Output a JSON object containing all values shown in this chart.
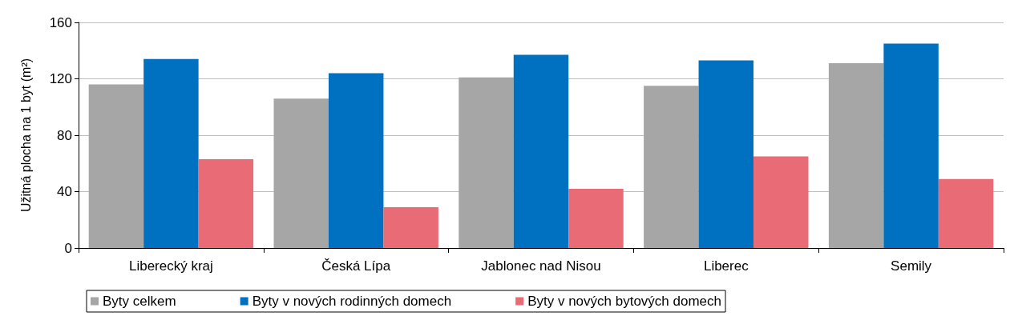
{
  "chart_data": {
    "type": "bar",
    "ylabel": "Užitná plocha na 1 byt (m²)",
    "categories": [
      "Liberecký kraj",
      "Česká Lípa",
      "Jablonec nad Nisou",
      "Liberec",
      "Semily"
    ],
    "series": [
      {
        "name": "Byty celkem",
        "color": "#a6a6a6",
        "values": [
          116,
          106,
          121,
          115,
          131
        ]
      },
      {
        "name": "Byty v nových rodinných domech",
        "color": "#0070c0",
        "values": [
          134,
          124,
          137,
          133,
          145
        ]
      },
      {
        "name": "Byty v nových bytových domech",
        "color": "#e96b75",
        "values": [
          63,
          29,
          42,
          65,
          49
        ]
      }
    ],
    "ylim": [
      0,
      160
    ],
    "yticks": [
      0,
      40,
      80,
      120,
      160
    ],
    "grid": "y",
    "legend": "bottom"
  }
}
